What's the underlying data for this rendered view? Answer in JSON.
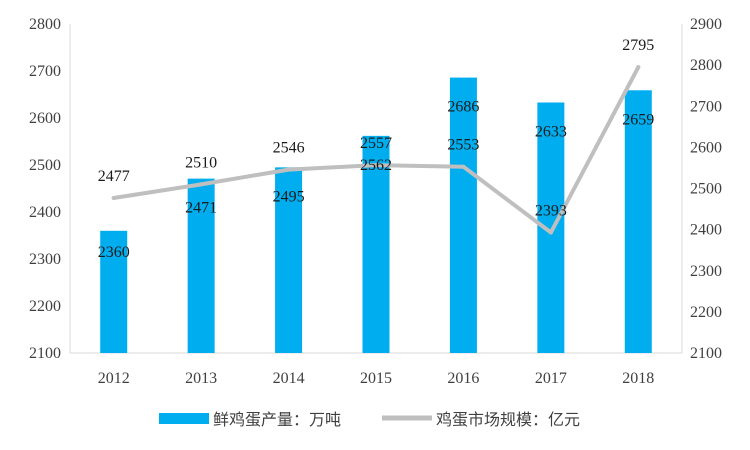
{
  "chart_data": {
    "type": "bar+line",
    "title": "",
    "categories": [
      "2012",
      "2013",
      "2014",
      "2015",
      "2016",
      "2017",
      "2018"
    ],
    "series": [
      {
        "name": "鲜鸡蛋产量：万吨",
        "type": "bar",
        "axis": "left",
        "color": "#00AEEF",
        "values": [
          2360,
          2471,
          2495,
          2562,
          2686,
          2633,
          2659
        ]
      },
      {
        "name": "鸡蛋市场规模：亿元",
        "type": "line",
        "axis": "right",
        "color": "#BFBFBF",
        "values": [
          2477,
          2510,
          2546,
          2557,
          2553,
          2393,
          2795
        ]
      }
    ],
    "y_left": {
      "min": 2100,
      "max": 2800,
      "step": 100
    },
    "y_right": {
      "min": 2100,
      "max": 2900,
      "step": 100
    },
    "grid": false,
    "legend_position": "bottom"
  }
}
